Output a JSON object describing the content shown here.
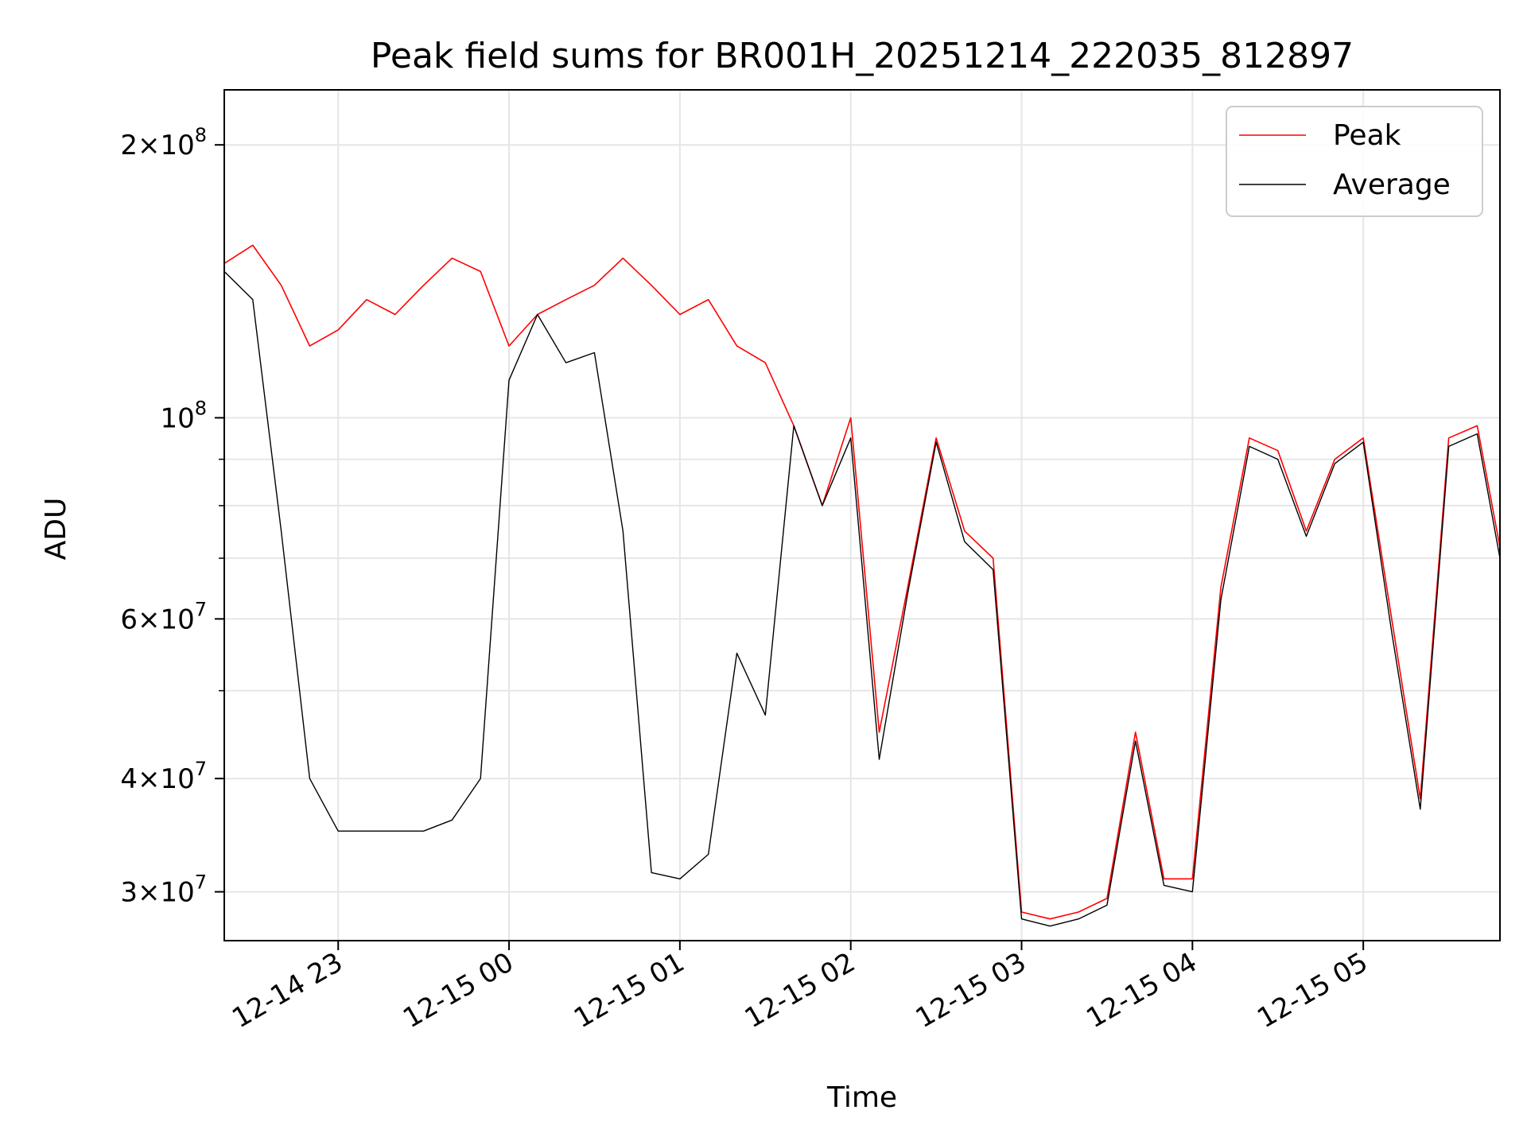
{
  "chart_data": {
    "type": "line",
    "title": "Peak field sums for BR001H_20251214_222035_812897",
    "xlabel": "Time",
    "ylabel": "ADU",
    "y_scale": "log",
    "grid": true,
    "legend_position": "top-right",
    "xlim": [
      "2025-12-14 22:20",
      "2025-12-15 05:48"
    ],
    "ylim": [
      26500000,
      230000000
    ],
    "x_ticks": [
      {
        "t": "2025-12-14 23:00",
        "label": "12-14 23"
      },
      {
        "t": "2025-12-15 00:00",
        "label": "12-15 00"
      },
      {
        "t": "2025-12-15 01:00",
        "label": "12-15 01"
      },
      {
        "t": "2025-12-15 02:00",
        "label": "12-15 02"
      },
      {
        "t": "2025-12-15 03:00",
        "label": "12-15 03"
      },
      {
        "t": "2025-12-15 04:00",
        "label": "12-15 04"
      },
      {
        "t": "2025-12-15 05:00",
        "label": "12-15 05"
      }
    ],
    "y_ticks": [
      {
        "v": 30000000,
        "mant": "3",
        "exp": "7"
      },
      {
        "v": 40000000,
        "mant": "4",
        "exp": "7"
      },
      {
        "v": 60000000,
        "mant": "6",
        "exp": "7"
      },
      {
        "v": 100000000,
        "mant": "",
        "exp": "8"
      },
      {
        "v": 200000000,
        "mant": "2",
        "exp": "8"
      }
    ],
    "series": [
      {
        "name": "Peak",
        "color": "#ff0000",
        "points": [
          [
            "2025-12-14 22:20",
            148000000
          ],
          [
            "2025-12-14 22:30",
            155000000
          ],
          [
            "2025-12-14 22:40",
            140000000
          ],
          [
            "2025-12-14 22:50",
            120000000
          ],
          [
            "2025-12-14 23:00",
            125000000
          ],
          [
            "2025-12-14 23:10",
            135000000
          ],
          [
            "2025-12-14 23:20",
            130000000
          ],
          [
            "2025-12-14 23:30",
            140000000
          ],
          [
            "2025-12-14 23:40",
            150000000
          ],
          [
            "2025-12-14 23:50",
            145000000
          ],
          [
            "2025-12-15 00:00",
            120000000
          ],
          [
            "2025-12-15 00:10",
            130000000
          ],
          [
            "2025-12-15 00:20",
            135000000
          ],
          [
            "2025-12-15 00:30",
            140000000
          ],
          [
            "2025-12-15 00:40",
            150000000
          ],
          [
            "2025-12-15 00:50",
            140000000
          ],
          [
            "2025-12-15 01:00",
            130000000
          ],
          [
            "2025-12-15 01:10",
            135000000
          ],
          [
            "2025-12-15 01:20",
            120000000
          ],
          [
            "2025-12-15 01:30",
            115000000
          ],
          [
            "2025-12-15 01:40",
            98000000
          ],
          [
            "2025-12-15 01:50",
            80000000
          ],
          [
            "2025-12-15 02:00",
            100000000
          ],
          [
            "2025-12-15 02:10",
            45000000
          ],
          [
            "2025-12-15 02:20",
            65000000
          ],
          [
            "2025-12-15 02:30",
            95000000
          ],
          [
            "2025-12-15 02:40",
            75000000
          ],
          [
            "2025-12-15 02:50",
            70000000
          ],
          [
            "2025-12-15 03:00",
            28500000
          ],
          [
            "2025-12-15 03:10",
            28000000
          ],
          [
            "2025-12-15 03:20",
            28500000
          ],
          [
            "2025-12-15 03:30",
            29500000
          ],
          [
            "2025-12-15 03:40",
            45000000
          ],
          [
            "2025-12-15 03:50",
            31000000
          ],
          [
            "2025-12-15 04:00",
            31000000
          ],
          [
            "2025-12-15 04:10",
            65000000
          ],
          [
            "2025-12-15 04:20",
            95000000
          ],
          [
            "2025-12-15 04:30",
            92000000
          ],
          [
            "2025-12-15 04:40",
            75000000
          ],
          [
            "2025-12-15 04:50",
            90000000
          ],
          [
            "2025-12-15 05:00",
            95000000
          ],
          [
            "2025-12-15 05:10",
            60000000
          ],
          [
            "2025-12-15 05:20",
            38000000
          ],
          [
            "2025-12-15 05:30",
            95000000
          ],
          [
            "2025-12-15 05:40",
            98000000
          ],
          [
            "2025-12-15 05:48",
            72000000
          ]
        ]
      },
      {
        "name": "Average",
        "color": "#000000",
        "points": [
          [
            "2025-12-14 22:20",
            145000000
          ],
          [
            "2025-12-14 22:30",
            135000000
          ],
          [
            "2025-12-14 22:40",
            75000000
          ],
          [
            "2025-12-14 22:50",
            40000000
          ],
          [
            "2025-12-14 23:00",
            35000000
          ],
          [
            "2025-12-14 23:10",
            35000000
          ],
          [
            "2025-12-14 23:20",
            35000000
          ],
          [
            "2025-12-14 23:30",
            35000000
          ],
          [
            "2025-12-14 23:40",
            36000000
          ],
          [
            "2025-12-14 23:50",
            40000000
          ],
          [
            "2025-12-15 00:00",
            110000000
          ],
          [
            "2025-12-15 00:10",
            130000000
          ],
          [
            "2025-12-15 00:20",
            115000000
          ],
          [
            "2025-12-15 00:30",
            118000000
          ],
          [
            "2025-12-15 00:40",
            75000000
          ],
          [
            "2025-12-15 00:50",
            31500000
          ],
          [
            "2025-12-15 01:00",
            31000000
          ],
          [
            "2025-12-15 01:10",
            33000000
          ],
          [
            "2025-12-15 01:20",
            55000000
          ],
          [
            "2025-12-15 01:30",
            47000000
          ],
          [
            "2025-12-15 01:40",
            98000000
          ],
          [
            "2025-12-15 01:50",
            80000000
          ],
          [
            "2025-12-15 02:00",
            95000000
          ],
          [
            "2025-12-15 02:10",
            42000000
          ],
          [
            "2025-12-15 02:20",
            64000000
          ],
          [
            "2025-12-15 02:30",
            94000000
          ],
          [
            "2025-12-15 02:40",
            73000000
          ],
          [
            "2025-12-15 02:50",
            68000000
          ],
          [
            "2025-12-15 03:00",
            28000000
          ],
          [
            "2025-12-15 03:10",
            27500000
          ],
          [
            "2025-12-15 03:20",
            28000000
          ],
          [
            "2025-12-15 03:30",
            29000000
          ],
          [
            "2025-12-15 03:40",
            44000000
          ],
          [
            "2025-12-15 03:50",
            30500000
          ],
          [
            "2025-12-15 04:00",
            30000000
          ],
          [
            "2025-12-15 04:10",
            63000000
          ],
          [
            "2025-12-15 04:20",
            93000000
          ],
          [
            "2025-12-15 04:30",
            90000000
          ],
          [
            "2025-12-15 04:40",
            74000000
          ],
          [
            "2025-12-15 04:50",
            89000000
          ],
          [
            "2025-12-15 05:00",
            94000000
          ],
          [
            "2025-12-15 05:10",
            58000000
          ],
          [
            "2025-12-15 05:20",
            37000000
          ],
          [
            "2025-12-15 05:30",
            93000000
          ],
          [
            "2025-12-15 05:40",
            96000000
          ],
          [
            "2025-12-15 05:48",
            70000000
          ]
        ]
      }
    ]
  }
}
